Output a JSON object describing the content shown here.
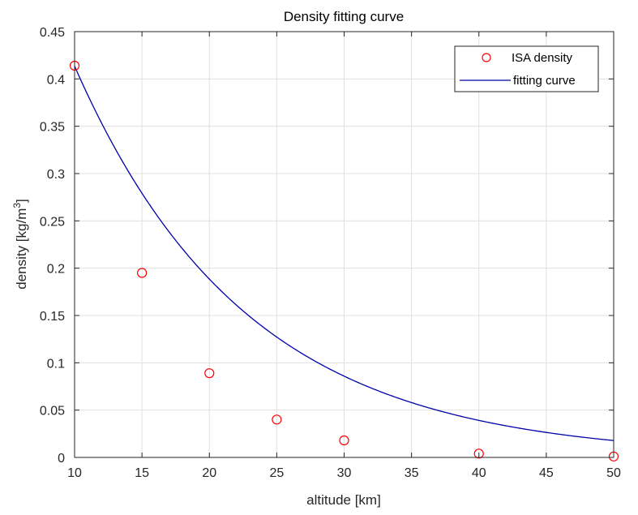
{
  "chart_data": {
    "type": "line",
    "title": "Density fitting curve",
    "xlabel": "altitude [km]",
    "ylabel": "density [kg/m",
    "ylabel_sup": "3",
    "ylabel_end": "]",
    "xlim": [
      10,
      50
    ],
    "ylim": [
      0,
      0.45
    ],
    "xticks": [
      10,
      15,
      20,
      25,
      30,
      35,
      40,
      45,
      50
    ],
    "yticks": [
      0,
      0.05,
      0.1,
      0.15,
      0.2,
      0.25,
      0.3,
      0.35,
      0.4,
      0.45
    ],
    "xtick_labels": [
      "10",
      "15",
      "20",
      "25",
      "30",
      "35",
      "40",
      "45",
      "50"
    ],
    "ytick_labels": [
      "0",
      "0.05",
      "0.1",
      "0.15",
      "0.2",
      "0.25",
      "0.3",
      "0.35",
      "0.4",
      "0.45"
    ],
    "grid": true,
    "legend_position": "top-right",
    "series": [
      {
        "name": "ISA density",
        "kind": "markers",
        "marker": "circle",
        "color": "#ff0000",
        "x": [
          10,
          15,
          20,
          25,
          30,
          40,
          50
        ],
        "y": [
          0.414,
          0.195,
          0.089,
          0.04,
          0.018,
          0.004,
          0.001
        ]
      },
      {
        "name": "fitting curve",
        "kind": "line",
        "color": "#0000aa",
        "model": "exponential",
        "a": 0.9077,
        "b": -0.0786
      }
    ]
  }
}
